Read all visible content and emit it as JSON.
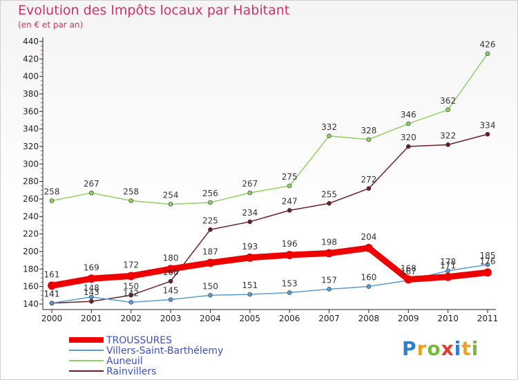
{
  "title": "Evolution des Impôts locaux par Habitant",
  "subtitle": "(en € et par an)",
  "logo": {
    "letters": [
      "P",
      "r",
      "o",
      "x",
      "i",
      "t",
      "i"
    ],
    "colors": [
      "#2d7fc9",
      "#f2a023",
      "#7ab83a",
      "#e53b2e",
      "#2d7fc9",
      "#f2a023",
      "#7ab83a"
    ]
  },
  "chart_data": {
    "type": "line",
    "title": "Evolution des Impôts locaux par Habitant",
    "subtitle": "(en € et par an)",
    "x": [
      "2000",
      "2001",
      "2002",
      "2003",
      "2004",
      "2005",
      "2006",
      "2007",
      "2008",
      "2009",
      "2010",
      "2011"
    ],
    "ylim": [
      140,
      440
    ],
    "yticks": [
      140,
      160,
      180,
      200,
      220,
      240,
      260,
      280,
      300,
      320,
      340,
      360,
      380,
      400,
      420,
      440
    ],
    "grid": false,
    "legend": "bottom-left",
    "series": [
      {
        "name": "TROUSSURES",
        "color": "#ee0000",
        "values": [
          161,
          169,
          172,
          180,
          187,
          193,
          196,
          198,
          204,
          168,
          171,
          176
        ],
        "labels": [
          "161",
          "169",
          "172",
          "180",
          "187",
          "193",
          "196",
          "198",
          "204",
          "168",
          "171",
          "176"
        ]
      },
      {
        "name": "Villers-Saint-Barthélemy",
        "color": "#5a9bd4",
        "values": [
          141,
          148,
          142,
          145,
          150,
          151,
          153,
          157,
          160,
          167,
          178,
          185
        ],
        "labels": [
          "141",
          "148",
          "142",
          "145",
          "150",
          "151",
          "153",
          "157",
          "160",
          "167",
          "178",
          "185"
        ]
      },
      {
        "name": "Auneuil",
        "color": "#8fd160",
        "values": [
          258,
          267,
          258,
          254,
          256,
          267,
          275,
          332,
          328,
          346,
          362,
          426
        ],
        "labels": [
          "258",
          "267",
          "258",
          "254",
          "256",
          "267",
          "275",
          "332",
          "328",
          "346",
          "362",
          "426"
        ]
      },
      {
        "name": "Rainvillers",
        "color": "#6b1f25",
        "values": [
          141,
          143,
          150,
          166,
          225,
          234,
          247,
          255,
          272,
          320,
          322,
          334
        ],
        "labels": [
          "141",
          "143",
          "150",
          "166",
          "225",
          "234",
          "247",
          "255",
          "272",
          "320",
          "322",
          "334"
        ]
      }
    ]
  }
}
